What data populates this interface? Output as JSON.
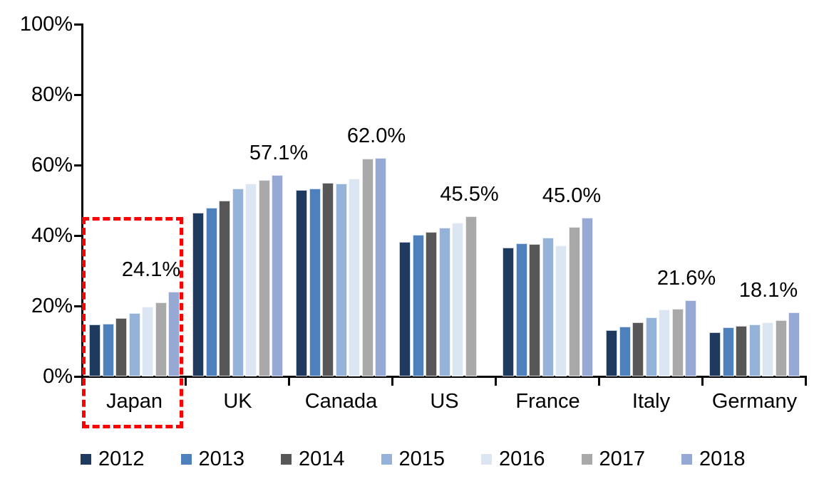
{
  "chart_data": {
    "type": "bar",
    "title": "",
    "xlabel": "",
    "ylabel": "",
    "ylim": [
      0,
      100
    ],
    "grid": false,
    "legend_position": "bottom",
    "y_ticks": [
      "0%",
      "20%",
      "40%",
      "60%",
      "80%",
      "100%"
    ],
    "categories": [
      "Japan",
      "UK",
      "Canada",
      "US",
      "France",
      "Italy",
      "Germany"
    ],
    "series": [
      {
        "name": "2012",
        "color": "#1E3A5F",
        "values": [
          14.8,
          46.5,
          53.0,
          38.2,
          36.5,
          13.2,
          12.5
        ]
      },
      {
        "name": "2013",
        "color": "#4E80BC",
        "values": [
          15.0,
          47.8,
          53.4,
          40.2,
          37.7,
          14.1,
          14.0
        ]
      },
      {
        "name": "2014",
        "color": "#575757",
        "values": [
          16.5,
          50.0,
          55.0,
          41.0,
          37.6,
          15.4,
          14.4
        ]
      },
      {
        "name": "2015",
        "color": "#95B3D8",
        "values": [
          18.0,
          53.3,
          54.8,
          42.2,
          39.3,
          16.8,
          14.8
        ]
      },
      {
        "name": "2016",
        "color": "#DCE6F3",
        "values": [
          19.8,
          54.8,
          56.2,
          43.6,
          37.2,
          19.0,
          15.3
        ]
      },
      {
        "name": "2017",
        "color": "#A9A9A9",
        "values": [
          21.0,
          55.8,
          61.8,
          45.5,
          42.4,
          19.2,
          16.0
        ]
      },
      {
        "name": "2018",
        "color": "#96A9D5",
        "values": [
          24.1,
          57.1,
          62.0,
          null,
          45.0,
          21.6,
          18.1
        ]
      }
    ],
    "data_labels": [
      "24.1%",
      "57.1%",
      "62.0%",
      "45.5%",
      "45.0%",
      "21.6%",
      "18.1%"
    ],
    "annotations": [
      {
        "type": "dashed-box",
        "target": "Japan",
        "color": "#FF0000"
      }
    ]
  }
}
